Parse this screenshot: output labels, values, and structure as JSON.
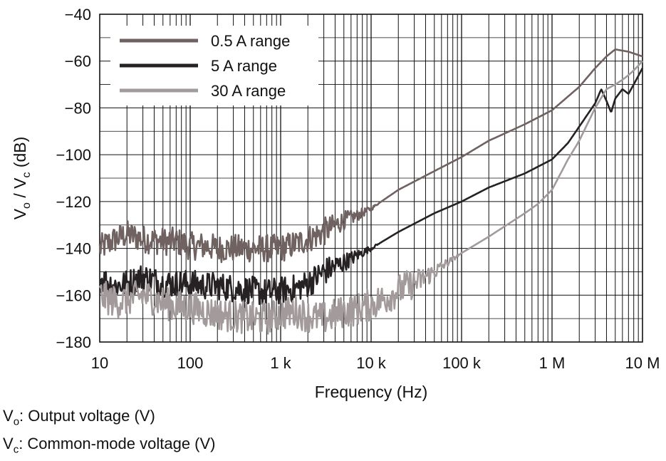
{
  "chart_data": {
    "type": "line",
    "xscale": "log",
    "xlim": [
      10,
      10000000
    ],
    "ylim": [
      -180,
      -40
    ],
    "xlabel": "Frequency (Hz)",
    "ylabel": {
      "main": "V",
      "sub1": "o",
      "mid": " / V",
      "sub2": "c",
      "unit": " (dB)"
    },
    "xticks": [
      {
        "value": 10,
        "label": "10"
      },
      {
        "value": 100,
        "label": "100"
      },
      {
        "value": 1000,
        "label": "1 k"
      },
      {
        "value": 10000,
        "label": "10 k"
      },
      {
        "value": 100000,
        "label": "100 k"
      },
      {
        "value": 1000000,
        "label": "1 M"
      },
      {
        "value": 10000000,
        "label": "10 M"
      }
    ],
    "yticks": [
      {
        "value": -40,
        "label": "−40"
      },
      {
        "value": -60,
        "label": "−60"
      },
      {
        "value": -80,
        "label": "−80"
      },
      {
        "value": -100,
        "label": "−100"
      },
      {
        "value": -120,
        "label": "−120"
      },
      {
        "value": -140,
        "label": "−140"
      },
      {
        "value": -160,
        "label": "−160"
      },
      {
        "value": -180,
        "label": "−180"
      }
    ],
    "grid": true,
    "legend_position": "top-left",
    "series": [
      {
        "name": "0.5 A range",
        "color": "#6f6261",
        "points": [
          [
            10,
            -140
          ],
          [
            15,
            -136
          ],
          [
            20,
            -134
          ],
          [
            30,
            -136
          ],
          [
            50,
            -137
          ],
          [
            70,
            -137
          ],
          [
            100,
            -139
          ],
          [
            150,
            -139
          ],
          [
            200,
            -140
          ],
          [
            300,
            -140
          ],
          [
            500,
            -140
          ],
          [
            700,
            -140
          ],
          [
            1000,
            -140
          ],
          [
            1500,
            -138
          ],
          [
            2000,
            -136
          ],
          [
            3000,
            -133
          ],
          [
            5000,
            -128
          ],
          [
            7000,
            -126
          ],
          [
            10000,
            -123
          ],
          [
            20000,
            -115
          ],
          [
            50000,
            -107
          ],
          [
            100000,
            -101
          ],
          [
            200000,
            -94
          ],
          [
            500000,
            -87
          ],
          [
            1000000,
            -81
          ],
          [
            2000000,
            -71
          ],
          [
            3000000,
            -63
          ],
          [
            4000000,
            -58
          ],
          [
            5000000,
            -55
          ],
          [
            7000000,
            -56
          ],
          [
            10000000,
            -58
          ]
        ]
      },
      {
        "name": "5 A range",
        "color": "#262122",
        "points": [
          [
            10,
            -153
          ],
          [
            15,
            -156
          ],
          [
            20,
            -155
          ],
          [
            30,
            -152
          ],
          [
            50,
            -155
          ],
          [
            70,
            -155
          ],
          [
            100,
            -155
          ],
          [
            150,
            -156
          ],
          [
            200,
            -156
          ],
          [
            300,
            -157
          ],
          [
            500,
            -158
          ],
          [
            700,
            -159
          ],
          [
            1000,
            -158
          ],
          [
            1500,
            -157
          ],
          [
            2000,
            -155
          ],
          [
            3000,
            -150
          ],
          [
            5000,
            -146
          ],
          [
            7000,
            -143
          ],
          [
            10000,
            -140
          ],
          [
            20000,
            -133
          ],
          [
            50000,
            -125
          ],
          [
            100000,
            -120
          ],
          [
            200000,
            -114
          ],
          [
            500000,
            -108
          ],
          [
            1000000,
            -102
          ],
          [
            1500000,
            -95
          ],
          [
            2000000,
            -88
          ],
          [
            3000000,
            -78
          ],
          [
            3500000,
            -72
          ],
          [
            4000000,
            -77
          ],
          [
            4500000,
            -82
          ],
          [
            5000000,
            -76
          ],
          [
            6000000,
            -72
          ],
          [
            7000000,
            -74
          ],
          [
            8000000,
            -70
          ],
          [
            10000000,
            -63
          ]
        ]
      },
      {
        "name": "30 A range",
        "color": "#a39b9b",
        "points": [
          [
            10,
            -160
          ],
          [
            15,
            -163
          ],
          [
            20,
            -162
          ],
          [
            30,
            -160
          ],
          [
            50,
            -163
          ],
          [
            70,
            -165
          ],
          [
            100,
            -165
          ],
          [
            150,
            -167
          ],
          [
            200,
            -168
          ],
          [
            300,
            -169
          ],
          [
            500,
            -170
          ],
          [
            700,
            -170
          ],
          [
            1000,
            -168
          ],
          [
            1500,
            -167
          ],
          [
            2000,
            -169
          ],
          [
            3000,
            -170
          ],
          [
            5000,
            -167
          ],
          [
            7000,
            -166
          ],
          [
            10000,
            -164
          ],
          [
            15000,
            -161
          ],
          [
            20000,
            -158
          ],
          [
            30000,
            -155
          ],
          [
            50000,
            -150
          ],
          [
            100000,
            -142
          ],
          [
            200000,
            -135
          ],
          [
            500000,
            -125
          ],
          [
            700000,
            -121
          ],
          [
            1000000,
            -115
          ],
          [
            1500000,
            -102
          ],
          [
            2000000,
            -94
          ],
          [
            3000000,
            -80
          ],
          [
            4000000,
            -72
          ],
          [
            5000000,
            -70
          ],
          [
            6000000,
            -68
          ],
          [
            7000000,
            -66
          ],
          [
            8000000,
            -64
          ],
          [
            10000000,
            -60
          ]
        ]
      }
    ]
  },
  "notes": [
    {
      "sym": "V",
      "sub": "o",
      "text": ": Output voltage (V)"
    },
    {
      "sym": "V",
      "sub": "c",
      "text": ": Common-mode voltage (V)"
    }
  ]
}
